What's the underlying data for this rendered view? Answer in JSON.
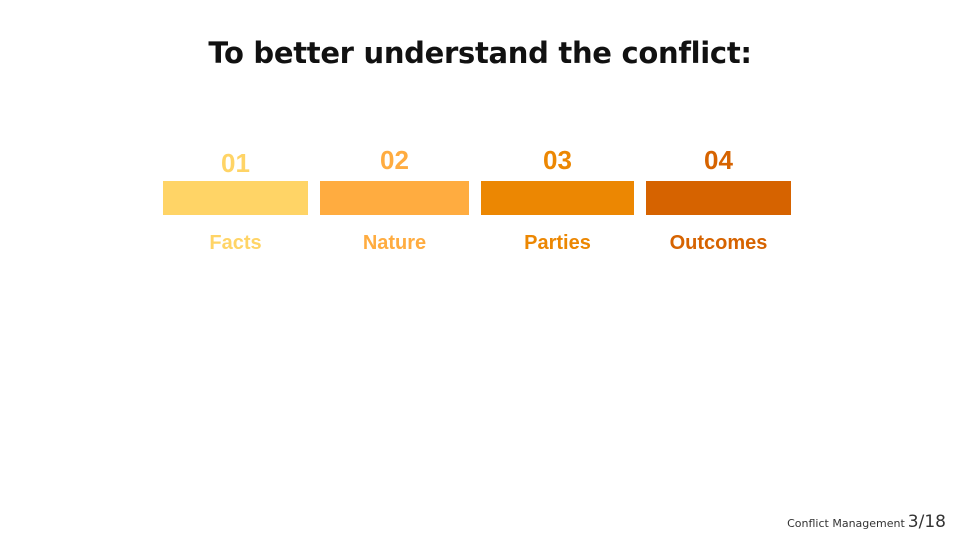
{
  "slide": {
    "title": "To better understand the conflict:"
  },
  "steps": [
    {
      "number": "01",
      "label": "Facts",
      "color": "#FFD466"
    },
    {
      "number": "02",
      "label": "Nature",
      "color": "#FFAC40"
    },
    {
      "number": "03",
      "label": "Parties",
      "color": "#EC8702"
    },
    {
      "number": "04",
      "label": "Outcomes",
      "color": "#D66300"
    }
  ],
  "footer": {
    "presentation_title": "Conflict Management",
    "page_current": "3",
    "page_total": "18"
  }
}
